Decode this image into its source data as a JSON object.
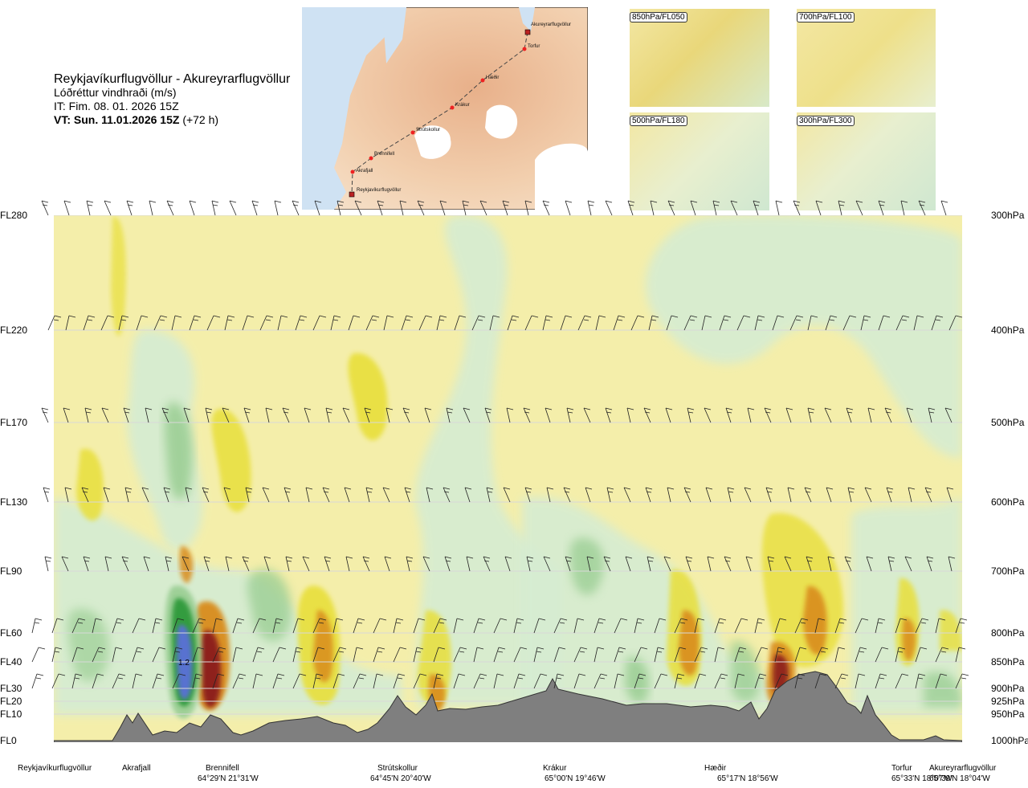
{
  "title": {
    "route": "Reykjavíkurflugvöllur - Akureyrarflugvöllur",
    "variable": "Lóðréttur vindhraði (m/s)",
    "issue_time": "IT: Fim. 08. 01. 2026 15Z",
    "valid_time": "VT: Sun. 11.01.2026 15Z",
    "lead_time": "(+72 h)"
  },
  "map_labels": [
    "Akureyrarflugvöllur",
    "Torfur",
    "Hæðir",
    "Krákur",
    "Strútskollur",
    "Brennifell",
    "Akrafjall",
    "Reykjavíkurflugvöllur"
  ],
  "inset_labels": [
    "850hPa/FL050",
    "700hPa/FL100",
    "500hPa/FL180",
    "300hPa/FL300"
  ],
  "chart_data": {
    "type": "heatmap",
    "xlabel": "",
    "ylabel": "",
    "levels": [
      {
        "fl": "FL280",
        "hpa": "300hPa"
      },
      {
        "fl": "FL220",
        "hpa": "400hPa"
      },
      {
        "fl": "FL170",
        "hpa": "500hPa"
      },
      {
        "fl": "FL130",
        "hpa": "600hPa"
      },
      {
        "fl": "FL90",
        "hpa": "700hPa"
      },
      {
        "fl": "FL60",
        "hpa": "800hPa"
      },
      {
        "fl": "FL40",
        "hpa": "850hPa"
      },
      {
        "fl": "FL30",
        "hpa": "900hPa"
      },
      {
        "fl": "FL20",
        "hpa": "925hPa"
      },
      {
        "fl": "FL10",
        "hpa": "950hPa"
      },
      {
        "fl": "FL0",
        "hpa": "1000hPa"
      }
    ],
    "points": [
      {
        "name": "Reykjavíkurflugvöllur",
        "coord": ""
      },
      {
        "name": "Akrafjall",
        "coord": ""
      },
      {
        "name": "Brennifell",
        "coord": "64°29'N 21°31'W"
      },
      {
        "name": "Strútskollur",
        "coord": "64°45'N 20°40'W"
      },
      {
        "name": "Krákur",
        "coord": "65°00'N 19°46'W"
      },
      {
        "name": "Hæðir",
        "coord": "65°17'N 18°56'W"
      },
      {
        "name": "Torfur",
        "coord": "65°33'N 18°07'W"
      },
      {
        "name": "Akureyrarflugvöllur",
        "coord": "65°39'N 18°04'W"
      }
    ],
    "annotation": "1.2",
    "colors": {
      "strong_up": "#8b1a1a",
      "up": "#d98c1a",
      "weak_up": "#e8df3a",
      "near_zero": "#f4eeaa",
      "weak_down": "#d6ecd2",
      "down": "#9ccf95",
      "strong_down": "#2e9a3a",
      "very_strong_down": "#5a6fd8",
      "terrain": "#7f7f7f"
    }
  }
}
